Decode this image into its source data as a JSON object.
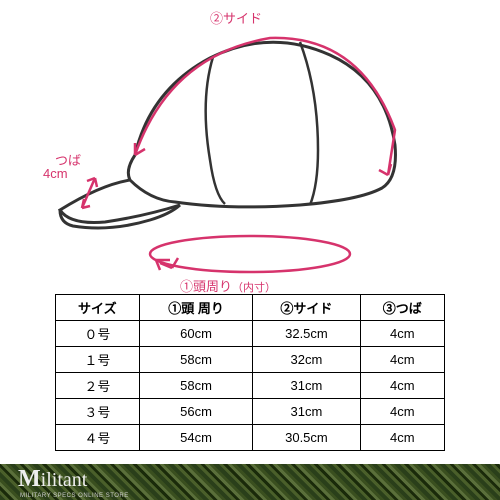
{
  "diagram": {
    "labels": {
      "side": "②サイド",
      "brim": "つば",
      "brim_val": "4cm",
      "circumference": "①頭周り",
      "inner": "（内寸）"
    },
    "stroke_color": "#d6336c",
    "outline_color": "#333333",
    "stroke_width": 2.5
  },
  "size_table": {
    "columns": [
      "サイズ",
      "①頭 周り",
      "②サイド",
      "③つば"
    ],
    "rows": [
      [
        "０号",
        "60cm",
        "32.5cm",
        "4cm"
      ],
      [
        "１号",
        "58cm",
        "32cm",
        "4cm"
      ],
      [
        "２号",
        "58cm",
        "31cm",
        "4cm"
      ],
      [
        "３号",
        "56cm",
        "31cm",
        "4cm"
      ],
      [
        "４号",
        "54cm",
        "30.5cm",
        "4cm"
      ]
    ],
    "border_color": "#000000",
    "font_size": 13
  },
  "footer": {
    "brand_first": "M",
    "brand_rest": "ilitant",
    "subtitle": "MILITARY SPECS ONLINE STORE",
    "text_color": "#eeeeee",
    "camo_colors": [
      "#2a3f1a",
      "#4a5f2a",
      "#1a2a0a",
      "#5a6f3a"
    ]
  }
}
